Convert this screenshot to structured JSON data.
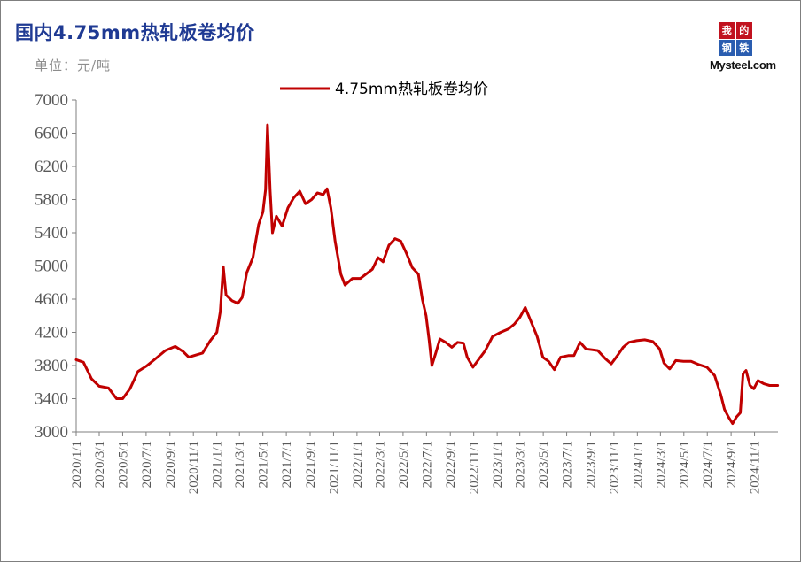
{
  "header": {
    "title": "国内4.75mm热轧板卷均价",
    "unit": "单位：元/吨"
  },
  "logo": {
    "chars": [
      "我",
      "的",
      "钢",
      "铁"
    ],
    "text": "Mysteel.com"
  },
  "colors": {
    "series": "#c00000",
    "axis": "#7f7f7f",
    "title": "#1f3a93"
  },
  "chart_data": {
    "type": "line",
    "title": "国内4.75mm热轧板卷均价",
    "ylabel": "单位：元/吨",
    "xlabel": "",
    "ylim": [
      3000,
      7000
    ],
    "yticks": [
      3000,
      3400,
      3800,
      4200,
      4600,
      5000,
      5400,
      5800,
      6200,
      6600,
      7000
    ],
    "xticks": [
      "2020/1/1",
      "2020/3/1",
      "2020/5/1",
      "2020/7/1",
      "2020/9/1",
      "2020/11/1",
      "2021/1/1",
      "2021/3/1",
      "2021/5/1",
      "2021/7/1",
      "2021/9/1",
      "2021/11/1",
      "2022/1/1",
      "2022/3/1",
      "2022/5/1",
      "2022/7/1",
      "2022/9/1",
      "2022/11/1",
      "2023/1/1",
      "2023/3/1",
      "2023/5/1",
      "2023/7/1",
      "2023/9/1",
      "2023/11/1",
      "2024/1/1",
      "2024/3/1",
      "2024/5/1",
      "2024/7/1",
      "2024/9/1",
      "2024/11/1"
    ],
    "legend": "top-center",
    "grid": false,
    "series": [
      {
        "name": "4.75mm热轧板卷均价",
        "points": [
          [
            "2020/1/1",
            3870
          ],
          [
            "2020/1/20",
            3840
          ],
          [
            "2020/2/10",
            3640
          ],
          [
            "2020/3/1",
            3550
          ],
          [
            "2020/3/25",
            3530
          ],
          [
            "2020/4/15",
            3400
          ],
          [
            "2020/5/1",
            3400
          ],
          [
            "2020/5/20",
            3520
          ],
          [
            "2020/6/10",
            3730
          ],
          [
            "2020/7/1",
            3790
          ],
          [
            "2020/7/25",
            3880
          ],
          [
            "2020/8/20",
            3980
          ],
          [
            "2020/9/15",
            4030
          ],
          [
            "2020/10/5",
            3970
          ],
          [
            "2020/10/20",
            3900
          ],
          [
            "2020/11/10",
            3930
          ],
          [
            "2020/11/25",
            3950
          ],
          [
            "2020/12/15",
            4100
          ],
          [
            "2021/1/1",
            4200
          ],
          [
            "2021/1/10",
            4450
          ],
          [
            "2021/1/18",
            4990
          ],
          [
            "2021/1/25",
            4650
          ],
          [
            "2021/2/10",
            4580
          ],
          [
            "2021/2/25",
            4550
          ],
          [
            "2021/3/8",
            4620
          ],
          [
            "2021/3/20",
            4920
          ],
          [
            "2021/4/5",
            5100
          ],
          [
            "2021/4/20",
            5500
          ],
          [
            "2021/5/1",
            5650
          ],
          [
            "2021/5/8",
            5920
          ],
          [
            "2021/5/13",
            6700
          ],
          [
            "2021/5/20",
            5900
          ],
          [
            "2021/5/26",
            5400
          ],
          [
            "2021/6/5",
            5600
          ],
          [
            "2021/6/20",
            5480
          ],
          [
            "2021/7/5",
            5700
          ],
          [
            "2021/7/20",
            5820
          ],
          [
            "2021/8/5",
            5900
          ],
          [
            "2021/8/20",
            5750
          ],
          [
            "2021/9/5",
            5800
          ],
          [
            "2021/9/20",
            5880
          ],
          [
            "2021/10/5",
            5860
          ],
          [
            "2021/10/15",
            5930
          ],
          [
            "2021/10/25",
            5700
          ],
          [
            "2021/11/5",
            5300
          ],
          [
            "2021/11/20",
            4900
          ],
          [
            "2021/12/1",
            4770
          ],
          [
            "2021/12/20",
            4850
          ],
          [
            "2022/1/10",
            4850
          ],
          [
            "2022/2/10",
            4960
          ],
          [
            "2022/2/25",
            5100
          ],
          [
            "2022/3/10",
            5050
          ],
          [
            "2022/3/25",
            5250
          ],
          [
            "2022/4/10",
            5330
          ],
          [
            "2022/4/25",
            5300
          ],
          [
            "2022/5/10",
            5150
          ],
          [
            "2022/5/25",
            4980
          ],
          [
            "2022/6/10",
            4900
          ],
          [
            "2022/6/20",
            4600
          ],
          [
            "2022/6/30",
            4400
          ],
          [
            "2022/7/8",
            4100
          ],
          [
            "2022/7/15",
            3800
          ],
          [
            "2022/7/25",
            3950
          ],
          [
            "2022/8/5",
            4120
          ],
          [
            "2022/8/20",
            4080
          ],
          [
            "2022/9/5",
            4020
          ],
          [
            "2022/9/20",
            4080
          ],
          [
            "2022/10/5",
            4070
          ],
          [
            "2022/10/15",
            3900
          ],
          [
            "2022/10/30",
            3780
          ],
          [
            "2022/11/15",
            3880
          ],
          [
            "2022/12/1",
            3980
          ],
          [
            "2022/12/20",
            4150
          ],
          [
            "2023/1/10",
            4200
          ],
          [
            "2023/1/30",
            4240
          ],
          [
            "2023/2/15",
            4300
          ],
          [
            "2023/3/1",
            4380
          ],
          [
            "2023/3/15",
            4500
          ],
          [
            "2023/3/30",
            4330
          ],
          [
            "2023/4/15",
            4150
          ],
          [
            "2023/4/30",
            3900
          ],
          [
            "2023/5/15",
            3850
          ],
          [
            "2023/5/30",
            3750
          ],
          [
            "2023/6/15",
            3900
          ],
          [
            "2023/7/5",
            3920
          ],
          [
            "2023/7/20",
            3920
          ],
          [
            "2023/8/5",
            4080
          ],
          [
            "2023/8/20",
            4000
          ],
          [
            "2023/9/5",
            3990
          ],
          [
            "2023/9/20",
            3980
          ],
          [
            "2023/10/10",
            3880
          ],
          [
            "2023/10/25",
            3820
          ],
          [
            "2023/11/10",
            3920
          ],
          [
            "2023/11/25",
            4020
          ],
          [
            "2023/12/10",
            4080
          ],
          [
            "2023/12/30",
            4100
          ],
          [
            "2024/1/20",
            4110
          ],
          [
            "2024/2/10",
            4090
          ],
          [
            "2024/2/28",
            4000
          ],
          [
            "2024/3/10",
            3830
          ],
          [
            "2024/3/25",
            3760
          ],
          [
            "2024/4/10",
            3860
          ],
          [
            "2024/4/30",
            3850
          ],
          [
            "2024/5/20",
            3850
          ],
          [
            "2024/6/10",
            3810
          ],
          [
            "2024/6/30",
            3780
          ],
          [
            "2024/7/20",
            3680
          ],
          [
            "2024/8/5",
            3450
          ],
          [
            "2024/8/15",
            3270
          ],
          [
            "2024/8/25",
            3180
          ],
          [
            "2024/9/5",
            3100
          ],
          [
            "2024/9/15",
            3180
          ],
          [
            "2024/9/25",
            3230
          ],
          [
            "2024/10/2",
            3700
          ],
          [
            "2024/10/10",
            3740
          ],
          [
            "2024/10/20",
            3560
          ],
          [
            "2024/10/30",
            3520
          ],
          [
            "2024/11/10",
            3620
          ],
          [
            "2024/11/25",
            3580
          ],
          [
            "2024/12/10",
            3560
          ],
          [
            "2024/12/31",
            3560
          ]
        ]
      }
    ]
  }
}
